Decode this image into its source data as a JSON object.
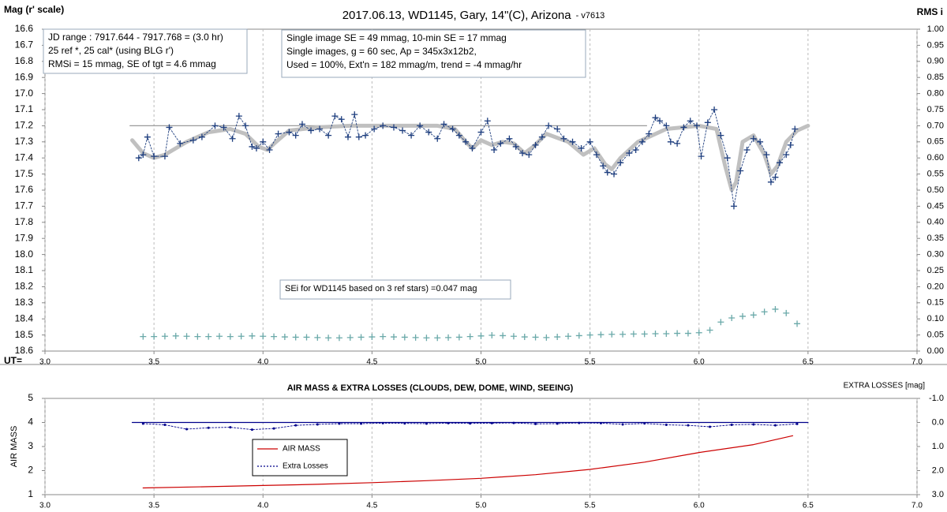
{
  "chart_data": [
    {
      "type": "line",
      "title": "2017.06.13,  WD1145, Gary, 14\"(C), Arizona",
      "subtitle": "- v7613",
      "y_label": "Mag (r' scale)",
      "y2_label": "RMS i",
      "x_label": "UT=",
      "annotations": [
        {
          "lines": [
            "JD range  : 7917.644 - 7917.768  = (3.0 hr)",
            "25 ref *, 25 cal* (using BLG r')",
            "RMSi = 15 mmag, SE of tgt = 4.6 mmag"
          ]
        },
        {
          "lines": [
            "Single image SE = 49 mmag, 10-min SE = 17 mmag",
            "Single images, g = 60 sec, Ap = 345x3x12b2,",
            "Used = 100%, Ext'n = 182 mmag/m, trend = -4 mmag/hr"
          ]
        },
        {
          "lines": [
            "SEi for WD1145 based on 3 ref stars) =0.047 mag"
          ]
        }
      ],
      "xlim": [
        3.0,
        7.0
      ],
      "xticks": [
        {
          "value": 3,
          "label": "3.0"
        },
        3.5,
        {
          "value": 4,
          "label": "4.0"
        },
        4.5,
        {
          "value": 5,
          "label": "5.0"
        },
        5.5,
        {
          "value": 6,
          "label": "6.0"
        },
        6.5,
        {
          "value": 7,
          "label": "7.0"
        }
      ],
      "ylim": [
        18.6,
        16.6
      ],
      "yticks": [
        16.6,
        16.7,
        16.8,
        16.9,
        {
          "value": 17,
          "label": "17.0"
        },
        17.1,
        17.2,
        17.3,
        17.4,
        17.5,
        17.6,
        17.7,
        17.8,
        17.9,
        {
          "value": 18,
          "label": "18.0"
        },
        18.1,
        18.2,
        18.3,
        18.4,
        18.5,
        18.6
      ],
      "y2lim": [
        0,
        1
      ],
      "y2ticks": [
        {
          "value": 0,
          "label": "0.00"
        },
        {
          "value": 0.05,
          "label": "0.05"
        },
        {
          "value": 0.1,
          "label": "0.10"
        },
        {
          "value": 0.15,
          "label": "0.15"
        },
        {
          "value": 0.2,
          "label": "0.20"
        },
        {
          "value": 0.25,
          "label": "0.25"
        },
        {
          "value": 0.3,
          "label": "0.30"
        },
        {
          "value": 0.35,
          "label": "0.35"
        },
        {
          "value": 0.4,
          "label": "0.40"
        },
        {
          "value": 0.45,
          "label": "0.45"
        },
        {
          "value": 0.5,
          "label": "0.50"
        },
        {
          "value": 0.55,
          "label": "0.55"
        },
        {
          "value": 0.6,
          "label": "0.60"
        },
        {
          "value": 0.65,
          "label": "0.65"
        },
        {
          "value": 0.7,
          "label": "0.70"
        },
        {
          "value": 0.75,
          "label": "0.75"
        },
        {
          "value": 0.8,
          "label": "0.80"
        },
        {
          "value": 0.85,
          "label": "0.85"
        },
        {
          "value": 0.9,
          "label": "0.90"
        },
        {
          "value": 0.95,
          "label": "0.95"
        },
        {
          "value": 1,
          "label": "1.00"
        }
      ],
      "grid": true,
      "series": [
        {
          "color": "#999999",
          "line": "solid",
          "marker": "none",
          "x": [
            3.39,
            5.76
          ],
          "values": [
            17.2,
            17.2
          ]
        },
        {
          "color": "#c0c0c0",
          "line": "thick",
          "marker": "none",
          "x": [
            3.4,
            3.45,
            3.5,
            3.55,
            3.65,
            3.75,
            3.85,
            3.92,
            3.98,
            4.02,
            4.06,
            4.12,
            4.25,
            4.4,
            4.6,
            4.8,
            4.88,
            4.93,
            4.96,
            5.0,
            5.05,
            5.1,
            5.15,
            5.2,
            5.24,
            5.3,
            5.4,
            5.47,
            5.52,
            5.57,
            5.6,
            5.64,
            5.72,
            5.85,
            6.0,
            6.08,
            6.12,
            6.15,
            6.17,
            6.2,
            6.25,
            6.3,
            6.33,
            6.36,
            6.4,
            6.45,
            6.5
          ],
          "values": [
            17.29,
            17.37,
            17.4,
            17.38,
            17.3,
            17.24,
            17.22,
            17.25,
            17.33,
            17.35,
            17.3,
            17.23,
            17.21,
            17.2,
            17.2,
            17.2,
            17.22,
            17.3,
            17.34,
            17.29,
            17.32,
            17.3,
            17.31,
            17.37,
            17.33,
            17.25,
            17.3,
            17.38,
            17.34,
            17.44,
            17.47,
            17.4,
            17.3,
            17.22,
            17.2,
            17.22,
            17.45,
            17.6,
            17.55,
            17.3,
            17.26,
            17.38,
            17.5,
            17.45,
            17.3,
            17.23,
            17.2
          ]
        },
        {
          "color": "#1f3f7f",
          "line": "dotted",
          "marker": "cross",
          "x": [
            3.43,
            3.45,
            3.47,
            3.5,
            3.55,
            3.57,
            3.62,
            3.68,
            3.72,
            3.78,
            3.82,
            3.86,
            3.89,
            3.92,
            3.95,
            3.97,
            4.0,
            4.03,
            4.07,
            4.12,
            4.15,
            4.18,
            4.22,
            4.26,
            4.3,
            4.33,
            4.36,
            4.39,
            4.42,
            4.44,
            4.47,
            4.51,
            4.55,
            4.6,
            4.64,
            4.68,
            4.72,
            4.76,
            4.8,
            4.83,
            4.87,
            4.9,
            4.93,
            4.96,
            5.0,
            5.03,
            5.06,
            5.09,
            5.13,
            5.16,
            5.19,
            5.22,
            5.25,
            5.28,
            5.31,
            5.35,
            5.38,
            5.42,
            5.46,
            5.5,
            5.53,
            5.56,
            5.58,
            5.61,
            5.64,
            5.68,
            5.71,
            5.74,
            5.77,
            5.8,
            5.82,
            5.85,
            5.87,
            5.9,
            5.93,
            5.96,
            5.99,
            6.01,
            6.04,
            6.07,
            6.1,
            6.13,
            6.16,
            6.19,
            6.22,
            6.25,
            6.28,
            6.31,
            6.33,
            6.35,
            6.37,
            6.4,
            6.42,
            6.44
          ],
          "values": [
            17.4,
            17.38,
            17.27,
            17.39,
            17.39,
            17.21,
            17.31,
            17.29,
            17.27,
            17.2,
            17.21,
            17.28,
            17.14,
            17.2,
            17.33,
            17.34,
            17.3,
            17.35,
            17.25,
            17.24,
            17.26,
            17.19,
            17.23,
            17.22,
            17.26,
            17.14,
            17.16,
            17.27,
            17.13,
            17.27,
            17.26,
            17.22,
            17.2,
            17.21,
            17.23,
            17.26,
            17.2,
            17.24,
            17.28,
            17.19,
            17.22,
            17.26,
            17.3,
            17.34,
            17.24,
            17.17,
            17.35,
            17.31,
            17.28,
            17.33,
            17.37,
            17.38,
            17.32,
            17.27,
            17.2,
            17.22,
            17.28,
            17.3,
            17.34,
            17.3,
            17.38,
            17.45,
            17.49,
            17.5,
            17.43,
            17.37,
            17.35,
            17.3,
            17.25,
            17.15,
            17.17,
            17.2,
            17.3,
            17.31,
            17.21,
            17.17,
            17.2,
            17.39,
            17.18,
            17.1,
            17.26,
            17.4,
            17.7,
            17.48,
            17.35,
            17.28,
            17.3,
            17.38,
            17.55,
            17.52,
            17.43,
            17.38,
            17.32,
            17.22
          ]
        },
        {
          "color": "#6aa9a9",
          "line": "none",
          "marker": "cross",
          "axis": "y2",
          "x": [
            3.45,
            3.5,
            3.55,
            3.6,
            3.65,
            3.7,
            3.75,
            3.8,
            3.85,
            3.9,
            3.95,
            4.0,
            4.05,
            4.1,
            4.15,
            4.2,
            4.25,
            4.3,
            4.35,
            4.4,
            4.45,
            4.5,
            4.55,
            4.6,
            4.65,
            4.7,
            4.75,
            4.8,
            4.85,
            4.9,
            4.95,
            5.0,
            5.05,
            5.1,
            5.15,
            5.2,
            5.25,
            5.3,
            5.35,
            5.4,
            5.45,
            5.5,
            5.55,
            5.6,
            5.65,
            5.7,
            5.75,
            5.8,
            5.85,
            5.9,
            5.95,
            6.0,
            6.05,
            6.1,
            6.15,
            6.2,
            6.25,
            6.3,
            6.35,
            6.4,
            6.45
          ],
          "values": [
            0.045,
            0.045,
            0.046,
            0.047,
            0.046,
            0.045,
            0.045,
            0.046,
            0.045,
            0.046,
            0.047,
            0.046,
            0.045,
            0.044,
            0.043,
            0.043,
            0.042,
            0.041,
            0.041,
            0.042,
            0.043,
            0.044,
            0.045,
            0.044,
            0.043,
            0.042,
            0.041,
            0.041,
            0.042,
            0.043,
            0.045,
            0.047,
            0.049,
            0.048,
            0.046,
            0.044,
            0.043,
            0.042,
            0.044,
            0.046,
            0.048,
            0.05,
            0.051,
            0.052,
            0.052,
            0.053,
            0.053,
            0.054,
            0.054,
            0.055,
            0.055,
            0.057,
            0.065,
            0.09,
            0.103,
            0.108,
            0.112,
            0.122,
            0.13,
            0.118,
            0.085
          ]
        }
      ]
    },
    {
      "type": "line",
      "title": "AIR MASS & EXTRA LOSSES (CLOUDS, DEW, DOME, WIND, SEEING)",
      "y_label": "AIR MASS",
      "y2_label": "EXTRA LOSSES [mag]",
      "xlim": [
        3.0,
        7.0
      ],
      "xticks": [
        {
          "value": 3,
          "label": "3.0"
        },
        3.5,
        {
          "value": 4,
          "label": "4.0"
        },
        4.5,
        {
          "value": 5,
          "label": "5.0"
        },
        5.5,
        {
          "value": 6,
          "label": "6.0"
        },
        6.5,
        {
          "value": 7,
          "label": "7.0"
        }
      ],
      "ylim": [
        1,
        5
      ],
      "yticks": [
        1,
        2,
        3,
        4,
        5
      ],
      "y2lim": [
        3,
        -1
      ],
      "y2ticks": [
        {
          "value": -1,
          "label": "-1.0"
        },
        {
          "value": 0,
          "label": "0.0"
        },
        {
          "value": 1,
          "label": "1.0"
        },
        {
          "value": 2,
          "label": "2.0"
        },
        {
          "value": 3,
          "label": "3.0"
        }
      ],
      "grid": true,
      "series": [
        {
          "color": "#00008b",
          "line": "solid",
          "marker": "none",
          "axis": "y2",
          "x": [
            3.4,
            6.5
          ],
          "values": [
            0,
            0
          ]
        },
        {
          "name": "AIR MASS",
          "color": "#cc0000",
          "line": "solid",
          "marker": "none",
          "x": [
            3.45,
            3.75,
            4.0,
            4.25,
            4.5,
            4.75,
            5.0,
            5.25,
            5.5,
            5.75,
            6.0,
            6.25,
            6.43
          ],
          "values": [
            1.28,
            1.33,
            1.38,
            1.43,
            1.5,
            1.58,
            1.68,
            1.83,
            2.05,
            2.35,
            2.75,
            3.08,
            3.45
          ]
        },
        {
          "name": "Extra Losses",
          "color": "#00008b",
          "line": "dotted",
          "marker": "dot",
          "axis": "y2",
          "x": [
            3.45,
            3.55,
            3.65,
            3.75,
            3.85,
            3.95,
            4.05,
            4.15,
            4.25,
            4.35,
            4.45,
            4.55,
            4.65,
            4.75,
            4.85,
            4.95,
            5.05,
            5.15,
            5.25,
            5.35,
            5.45,
            5.55,
            5.65,
            5.75,
            5.85,
            5.95,
            6.05,
            6.15,
            6.25,
            6.35,
            6.45
          ],
          "values": [
            0.05,
            0.1,
            0.28,
            0.22,
            0.2,
            0.3,
            0.25,
            0.12,
            0.08,
            0.05,
            0.05,
            0.03,
            0.04,
            0.05,
            0.03,
            0.04,
            0.03,
            0.02,
            0.06,
            0.05,
            0.02,
            0.03,
            0.08,
            0.04,
            0.1,
            0.12,
            0.18,
            0.1,
            0.08,
            0.12,
            0.06
          ]
        }
      ]
    }
  ]
}
